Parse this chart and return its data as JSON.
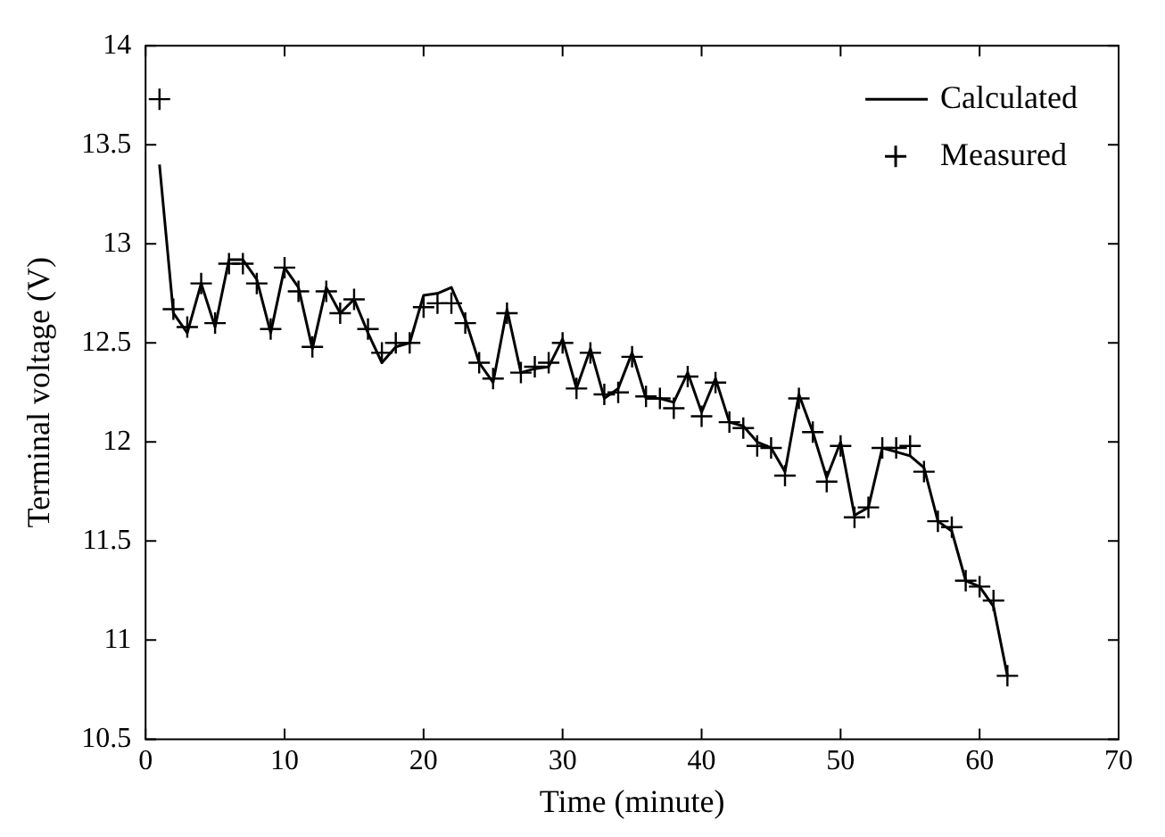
{
  "chart_data": {
    "type": "line",
    "xlabel": "Time (minute)",
    "ylabel": "Terminal voltage (V)",
    "xlim": [
      0,
      70
    ],
    "xticks": [
      0,
      10,
      20,
      30,
      40,
      50,
      60,
      70
    ],
    "ylim": [
      10.5,
      14
    ],
    "yticks": [
      10.5,
      11,
      11.5,
      12,
      12.5,
      13,
      13.5,
      14
    ],
    "grid": false,
    "legend": "top right",
    "x": [
      1,
      2,
      3,
      4,
      5,
      6,
      7,
      8,
      9,
      10,
      11,
      12,
      13,
      14,
      15,
      16,
      17,
      18,
      19,
      20,
      21,
      22,
      23,
      24,
      25,
      26,
      27,
      28,
      29,
      30,
      31,
      32,
      33,
      34,
      35,
      36,
      37,
      38,
      39,
      40,
      41,
      42,
      43,
      44,
      45,
      46,
      47,
      48,
      49,
      50,
      51,
      52,
      53,
      54,
      55,
      56,
      57,
      58,
      59,
      60,
      61,
      62
    ],
    "series": [
      {
        "name": "Calculated",
        "marker": "none",
        "line_style": "solid",
        "color": "#000000",
        "values": [
          13.4,
          12.65,
          12.55,
          12.8,
          12.58,
          12.92,
          12.92,
          12.82,
          12.55,
          12.88,
          12.78,
          12.47,
          12.78,
          12.65,
          12.72,
          12.55,
          12.4,
          12.48,
          12.5,
          12.74,
          12.75,
          12.78,
          12.62,
          12.4,
          12.3,
          12.67,
          12.35,
          12.37,
          12.38,
          12.52,
          12.27,
          12.47,
          12.22,
          12.27,
          12.45,
          12.22,
          12.22,
          12.2,
          12.35,
          12.15,
          12.32,
          12.1,
          12.08,
          12.0,
          11.97,
          11.85,
          12.24,
          12.05,
          11.82,
          12.0,
          11.63,
          11.67,
          11.97,
          11.95,
          11.93,
          11.87,
          11.6,
          11.55,
          11.3,
          11.27,
          11.17,
          10.82
        ]
      },
      {
        "name": "Measured",
        "type": "scatter",
        "marker": "cross",
        "color": "#000000",
        "values": [
          13.73,
          12.67,
          12.58,
          12.8,
          12.6,
          12.9,
          12.9,
          12.8,
          12.57,
          12.88,
          12.76,
          12.48,
          12.76,
          12.65,
          12.72,
          12.57,
          12.45,
          12.5,
          12.5,
          12.68,
          12.7,
          12.7,
          12.6,
          12.4,
          12.32,
          12.65,
          12.35,
          12.38,
          12.4,
          12.5,
          12.27,
          12.45,
          12.24,
          12.25,
          12.43,
          12.23,
          12.22,
          12.17,
          12.33,
          12.13,
          12.3,
          12.1,
          12.07,
          11.98,
          11.97,
          11.83,
          12.22,
          12.05,
          11.8,
          11.98,
          11.62,
          11.67,
          11.97,
          11.97,
          11.98,
          11.85,
          11.6,
          11.57,
          11.3,
          11.27,
          11.2,
          10.82
        ]
      }
    ]
  }
}
